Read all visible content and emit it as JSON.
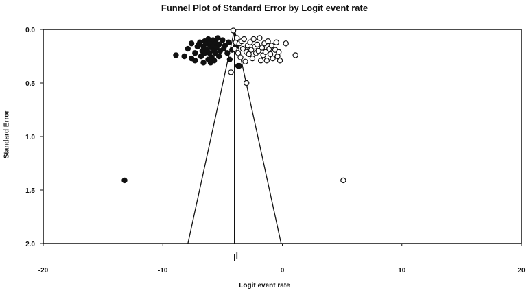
{
  "chart_data": {
    "type": "scatter",
    "title": "Funnel Plot of Standard Error by Logit event rate",
    "xlabel": "Logit event rate",
    "ylabel": "Standard Error",
    "xlim": [
      -20,
      20
    ],
    "ylim": [
      0.0,
      2.0
    ],
    "y_inverted": true,
    "x_ticks": [
      "-20",
      "-10",
      "0",
      "10",
      "20"
    ],
    "y_ticks": [
      "0.0",
      "0.5",
      "1.0",
      "1.5",
      "2.0"
    ],
    "grid": false,
    "legend": "none",
    "funnel": {
      "apex_x": -4.0,
      "apex_se": 0.0,
      "base_left": -7.9,
      "base_right": -0.1,
      "base_se": 2.0
    },
    "mean_line_x": -4.0,
    "summary_markers": [
      -4.0,
      -3.8
    ],
    "series": [
      {
        "filled": true,
        "x": [
          -13.2,
          -8.9,
          -8.2,
          -7.9,
          -7.6,
          -7.6,
          -7.3,
          -7.3,
          -7.1,
          -7.0,
          -6.9,
          -6.8,
          -6.7,
          -6.6,
          -6.6,
          -6.5,
          -6.5,
          -6.4,
          -6.3,
          -6.2,
          -6.2,
          -6.1,
          -6.1,
          -6.0,
          -6.0,
          -5.9,
          -5.9,
          -5.8,
          -5.8,
          -5.7,
          -5.7,
          -5.6,
          -5.6,
          -5.5,
          -5.4,
          -5.3,
          -5.3,
          -5.2,
          -5.0,
          -4.9,
          -4.8,
          -4.6,
          -4.5,
          -4.4,
          -4.2,
          -3.9,
          -3.7,
          -3.6
        ],
        "y": [
          1.41,
          0.24,
          0.25,
          0.18,
          0.13,
          0.27,
          0.22,
          0.29,
          0.16,
          0.14,
          0.12,
          0.25,
          0.2,
          0.16,
          0.31,
          0.11,
          0.22,
          0.13,
          0.19,
          0.09,
          0.28,
          0.14,
          0.22,
          0.12,
          0.31,
          0.17,
          0.26,
          0.1,
          0.15,
          0.2,
          0.29,
          0.12,
          0.22,
          0.17,
          0.08,
          0.14,
          0.25,
          0.2,
          0.1,
          0.18,
          0.15,
          0.22,
          0.12,
          0.28,
          0.19,
          0.16,
          0.34,
          0.34
        ]
      },
      {
        "filled": false,
        "x": [
          5.1,
          -4.3,
          -4.1,
          -4.0,
          -3.9,
          -3.8,
          -3.7,
          -3.6,
          -3.5,
          -3.4,
          -3.3,
          -3.2,
          -3.1,
          -3.0,
          -3.0,
          -2.9,
          -2.8,
          -2.7,
          -2.6,
          -2.5,
          -2.4,
          -2.3,
          -2.2,
          -2.1,
          -2.0,
          -1.9,
          -1.8,
          -1.7,
          -1.6,
          -1.5,
          -1.4,
          -1.3,
          -1.2,
          -1.1,
          -1.0,
          -0.9,
          -0.8,
          -0.6,
          -0.5,
          -0.4,
          -0.3,
          -0.2,
          0.3,
          1.1
        ],
        "y": [
          1.41,
          0.4,
          0.01,
          0.18,
          0.12,
          0.08,
          0.22,
          0.13,
          0.26,
          0.11,
          0.18,
          0.09,
          0.3,
          0.21,
          0.5,
          0.15,
          0.23,
          0.12,
          0.19,
          0.27,
          0.09,
          0.16,
          0.22,
          0.14,
          0.2,
          0.08,
          0.29,
          0.17,
          0.24,
          0.13,
          0.21,
          0.29,
          0.11,
          0.18,
          0.23,
          0.15,
          0.27,
          0.19,
          0.12,
          0.25,
          0.21,
          0.29,
          0.13,
          0.24
        ]
      }
    ]
  }
}
